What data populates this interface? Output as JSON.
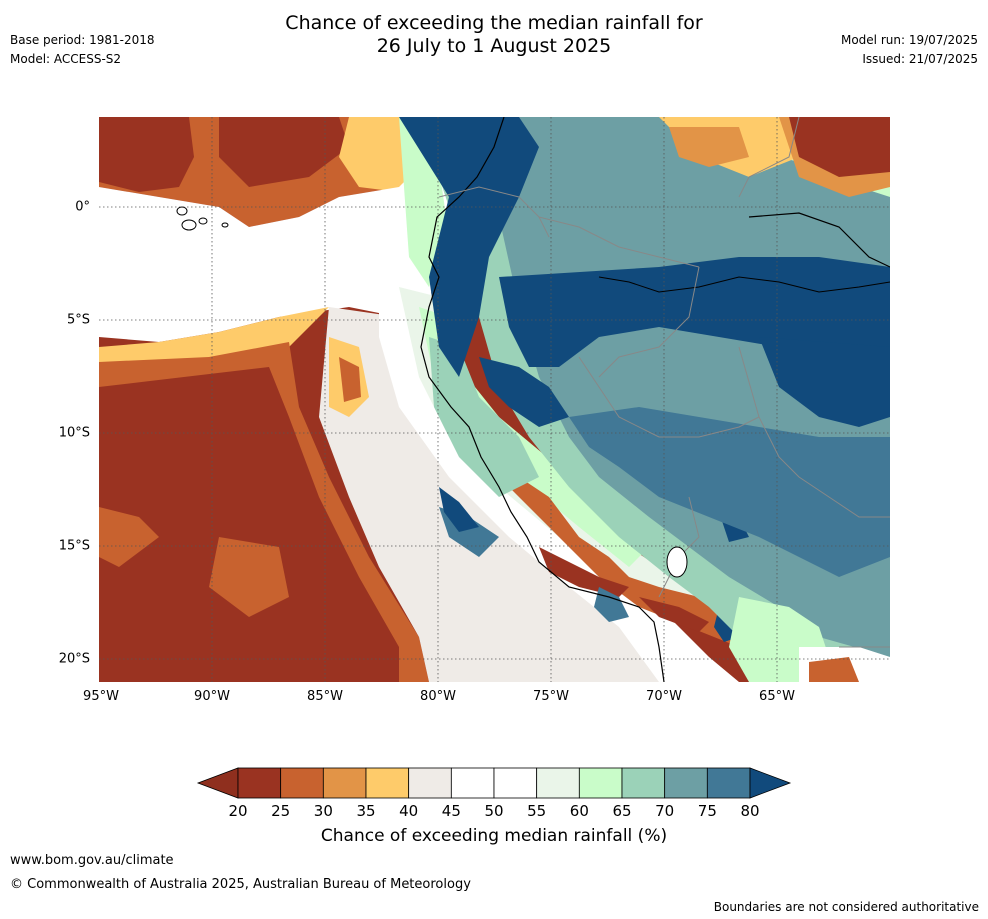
{
  "header": {
    "left_line1": "Base period: 1981-2018",
    "left_line2": "Model: ACCESS-S2",
    "title_line1": "Chance of exceeding the median rainfall for",
    "title_line2": "26 July to 1 August 2025",
    "right_line1": "Model run: 19/07/2025",
    "right_line2": "Issued: 21/07/2025"
  },
  "map": {
    "lon_labels": [
      "95°W",
      "90°W",
      "85°W",
      "80°W",
      "75°W",
      "70°W",
      "65°W"
    ],
    "lat_labels": [
      "0°",
      "5°S",
      "10°S",
      "15°S",
      "20°S"
    ],
    "palette": {
      "lt20": "#8f2f1e",
      "20_25": "#9a3321",
      "25_30": "#c8622f",
      "30_35": "#e29447",
      "35_40": "#fecb6a",
      "40_45": "#efebe7",
      "45_55": "#ffffff",
      "55_60": "#eaf5e9",
      "60_65": "#c9fcc9",
      "65_70": "#9bd2b8",
      "70_75": "#6d9fa4",
      "75_80": "#417896",
      "gt80": "#114a7c"
    }
  },
  "colorbar": {
    "ticks": [
      "20",
      "25",
      "30",
      "35",
      "40",
      "45",
      "50",
      "55",
      "60",
      "65",
      "70",
      "75",
      "80"
    ],
    "colors": [
      "#9a3321",
      "#c8622f",
      "#e29447",
      "#fecb6a",
      "#efebe7",
      "#ffffff",
      "#ffffff",
      "#eaf5e9",
      "#c9fcc9",
      "#9bd2b8",
      "#6d9fa4",
      "#417896"
    ],
    "low_color": "#8f2f1e",
    "high_color": "#114a7c",
    "label": "Chance of exceeding median rainfall (%)"
  },
  "footer": {
    "url": "www.bom.gov.au/climate",
    "copyright": "© Commonwealth of Australia 2025, Australian Bureau of Meteorology",
    "disclaimer": "Boundaries are not considered authoritative"
  }
}
